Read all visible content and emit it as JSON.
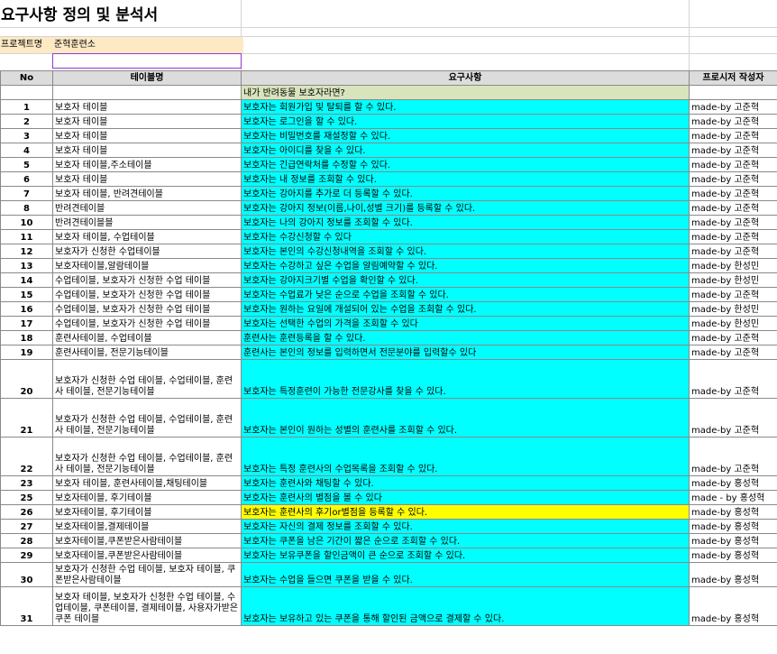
{
  "title": "요구사항 정의 및 분석서",
  "project": {
    "label": "프로젝트명",
    "value": "준혁훈련소",
    "input_value": ""
  },
  "columns": [
    "No",
    "테이블명",
    "요구사항",
    "프로시저 작성자"
  ],
  "section_title": "내가 반려동물 보호자라면?",
  "colors": {
    "requirement": "#00ffff",
    "highlight": "#ffff00",
    "section": "#d8e4bc",
    "header": "#dcdcdc",
    "project": "#fde9c4"
  },
  "rows": [
    {
      "no": "1",
      "table": "보호자 테이블",
      "req": "보호자는 회원가입 및 탈퇴를 할 수 있다.",
      "author": "made-by 고준혁"
    },
    {
      "no": "2",
      "table": "보호자 테이블",
      "req": "보호자는 로그인을 할 수 있다.",
      "author": "made-by 고준혁"
    },
    {
      "no": "3",
      "table": "보호자 테이블",
      "req": "보호자는 비밀번호를 재설정할 수 있다.",
      "author": "made-by 고준혁"
    },
    {
      "no": "4",
      "table": "보호자 테이블",
      "req": "보호자는 아이디를 찾을 수 있다.",
      "author": "made-by 고준혁"
    },
    {
      "no": "5",
      "table": "보호자 테이블,주소테이블",
      "req": "보호자는 긴급연락처를 수정할 수 있다.",
      "author": "made-by 고준혁"
    },
    {
      "no": "6",
      "table": "보호자 테이블",
      "req": "보호자는 내 정보를 조회할 수 있다.",
      "author": "made-by 고준혁"
    },
    {
      "no": "7",
      "table": "보호자 테이블, 반려견테이블",
      "req": "보호자는 강아지를 추가로 더 등록할 수 있다.",
      "author": "made-by 고준혁"
    },
    {
      "no": "8",
      "table": "반려견테이블",
      "req": "보호자는 강아지 정보(이름,나이,성별 크기)를 등록할 수 있다.",
      "author": "made-by 고준혁"
    },
    {
      "no": "10",
      "table": "반려견테이블블",
      "req": "보호자는 나의 강아지 정보를 조회할 수 있다.",
      "author": "made-by 고준혁"
    },
    {
      "no": "11",
      "table": "보호자 테이블, 수업테이블",
      "req": "보호자는 수강신청할 수 있다",
      "author": "made-by 고준혁"
    },
    {
      "no": "12",
      "table": "보호자가 신청한 수업테이블",
      "req": "보호자는 본인의 수강신청내역을 조회할 수 있다.",
      "author": "made-by 고준혁"
    },
    {
      "no": "13",
      "table": "보호자테이블,알람테이블",
      "req": "보호자는 수강하고 싶은 수업을 알림예약할 수 있다.",
      "author": "made-by 한성민"
    },
    {
      "no": "14",
      "table": "수업테이블, 보호자가 신청한  수업 테이블",
      "req": "보호자는 강아지크기별 수업을 확인할 수 있다.",
      "author": "made-by 한성민"
    },
    {
      "no": "15",
      "table": "수업테이블, 보호자가 신청한  수업 테이블",
      "req": "보호자는 수업료가 낮은 순으로 수업을 조회할 수 있다.",
      "author": "made-by 고준혁"
    },
    {
      "no": "16",
      "table": "수업테이블, 보호자가 신청한  수업 테이블",
      "req": "보호자는 원하는 요일에 개설되어 있는 수업을 조회할 수 있다.",
      "author": "made-by 한성민"
    },
    {
      "no": "17",
      "table": "수업테이블, 보호자가 신청한  수업 테이블",
      "req": "보호자는 선택한 수업의 가격을 조회할 수 있다",
      "author": "made-by 한성민"
    },
    {
      "no": "18",
      "table": "훈련사테이블, 수업테이블",
      "req": "훈련사는 훈련등록을 할 수 있다.",
      "author": "made-by 고준혁"
    },
    {
      "no": "19",
      "table": "훈련사테이블, 전문기능테이블",
      "req": "훈련사는 본인의 정보를 입력하면서 전문분야를 입력할수 있다",
      "author": "made-by 고준혁"
    },
    {
      "no": "20",
      "table": "보호자가 신청한 수업 테이블, 수업테이블, 훈련사 테이블, 전문기능테이블",
      "req": "보호자는 특정훈련이 가능한 전문강사를 찾을 수 있다.",
      "author": "made-by 고준혁",
      "tall": true
    },
    {
      "no": "21",
      "table": "보호자가 신청한 수업 테이블, 수업테이블, 훈련사 테이블, 전문기능테이블",
      "req": "보호자는 본인이 원하는 성별의 훈련사를 조회할 수 있다.",
      "author": "made-by 고준혁",
      "tall": true
    },
    {
      "no": "22",
      "table": "보호자가 신청한 수업 테이블, 수업테이블, 훈련사 테이블, 전문기능테이블",
      "req": "보호자는 특정 훈련사의 수업목록을 조회할 수 있다.",
      "author": "made-by 고준혁",
      "tall": true
    },
    {
      "no": "23",
      "table": "보호자 테이블, 훈련사테이블,채팅테이블",
      "req": "보호자는 훈련사와 채팅할 수 있다.",
      "author": "made-by 홍성혁"
    },
    {
      "no": "25",
      "table": "보호자테이블, 후기테이블",
      "req": "보호자는 훈련사의 별점을 볼 수 있다",
      "author": "made - by 홍성혁"
    },
    {
      "no": "26",
      "table": "보호자테이블, 후기테이블",
      "req": "보호자는 훈련사의 후기or별점을 등록할 수 있다.",
      "author": "made-by 홍성혁",
      "highlight": true
    },
    {
      "no": "27",
      "table": "보호자테이블,결제테이블",
      "req": "보호자는 자신의 결제 정보를 조회할 수 있다.",
      "author": "made-by 홍성혁"
    },
    {
      "no": "28",
      "table": "보호자테이블,쿠폰받은사람테이블",
      "req": "보호자는 쿠폰을 남은 기간이 짧은 순으로 조회할 수 있다.",
      "author": "made-by 홍성혁"
    },
    {
      "no": "29",
      "table": "보호자테이블,쿠폰받은사람테이블",
      "req": "보호자는 보유쿠폰을 할인금액이 큰 순으로 조회할 수 있다.",
      "author": "made-by 홍성혁"
    },
    {
      "no": "30",
      "table": "보호자가 신청한 수업 테이블, 보호자 테이블, 쿠폰받은사람테이블",
      "req": "보호자는 수업을 들으면 쿠폰을 받을 수 있다.",
      "author": "made-by 홍성혁",
      "mid": true
    },
    {
      "no": "31",
      "table": "보호자 테이블, 보호자가 신청한 수업 테이블, 수업테이블, 쿠폰테이블, 결제테이블, 사용자가받은 쿠폰 테이블",
      "req": "보호자는 보유하고 있는 쿠폰을 통해 할인된 금액으로 결제할 수 있다.",
      "author": "made-by 홍성혁",
      "tall": true
    }
  ]
}
